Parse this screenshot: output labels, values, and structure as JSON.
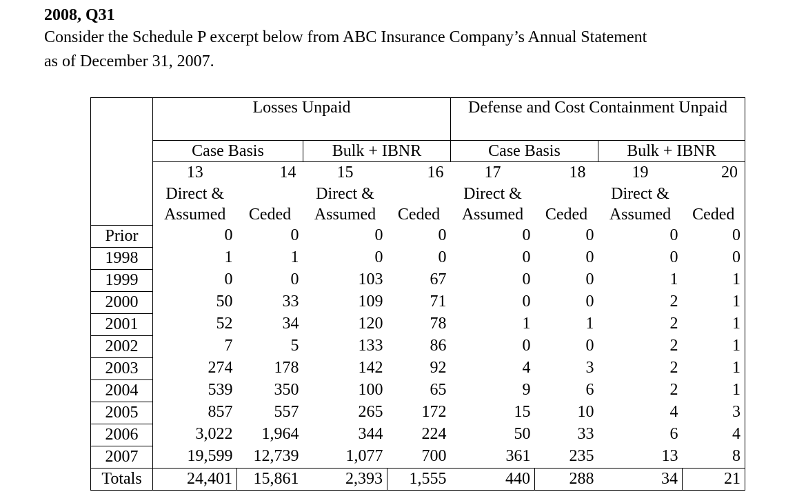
{
  "heading": "2008, Q31",
  "intro": "Consider the Schedule P excerpt below from ABC Insurance Company’s Annual Statement as of December 31, 2007.",
  "table": {
    "groups": [
      "Losses Unpaid",
      "Defense and Cost Containment Unpaid"
    ],
    "subgroups": [
      "Case Basis",
      "Bulk + IBNR",
      "Case Basis",
      "Bulk + IBNR"
    ],
    "col_numbers": [
      "13",
      "14",
      "15",
      "16",
      "17",
      "18",
      "19",
      "20"
    ],
    "col_label_line1": [
      "Direct &",
      "",
      "Direct &",
      "",
      "Direct &",
      "",
      "Direct &",
      ""
    ],
    "col_label_line2": [
      "Assumed",
      "Ceded",
      "Assumed",
      "Ceded",
      "Assumed",
      "Ceded",
      "Assumed",
      "Ceded"
    ],
    "rows": [
      {
        "year": "Prior",
        "values": [
          "0",
          "0",
          "0",
          "0",
          "0",
          "0",
          "0",
          "0"
        ]
      },
      {
        "year": "1998",
        "values": [
          "1",
          "1",
          "0",
          "0",
          "0",
          "0",
          "0",
          "0"
        ]
      },
      {
        "year": "1999",
        "values": [
          "0",
          "0",
          "103",
          "67",
          "0",
          "0",
          "1",
          "1"
        ]
      },
      {
        "year": "2000",
        "values": [
          "50",
          "33",
          "109",
          "71",
          "0",
          "0",
          "2",
          "1"
        ]
      },
      {
        "year": "2001",
        "values": [
          "52",
          "34",
          "120",
          "78",
          "1",
          "1",
          "2",
          "1"
        ]
      },
      {
        "year": "2002",
        "values": [
          "7",
          "5",
          "133",
          "86",
          "0",
          "0",
          "2",
          "1"
        ]
      },
      {
        "year": "2003",
        "values": [
          "274",
          "178",
          "142",
          "92",
          "4",
          "3",
          "2",
          "1"
        ]
      },
      {
        "year": "2004",
        "values": [
          "539",
          "350",
          "100",
          "65",
          "9",
          "6",
          "2",
          "1"
        ]
      },
      {
        "year": "2005",
        "values": [
          "857",
          "557",
          "265",
          "172",
          "15",
          "10",
          "4",
          "3"
        ]
      },
      {
        "year": "2006",
        "values": [
          "3,022",
          "1,964",
          "344",
          "224",
          "50",
          "33",
          "6",
          "4"
        ]
      },
      {
        "year": "2007",
        "values": [
          "19,599",
          "12,739",
          "1,077",
          "700",
          "361",
          "235",
          "13",
          "8"
        ]
      },
      {
        "year": "Totals",
        "values": [
          "24,401",
          "15,861",
          "2,393",
          "1,555",
          "440",
          "288",
          "34",
          "21"
        ]
      }
    ]
  }
}
